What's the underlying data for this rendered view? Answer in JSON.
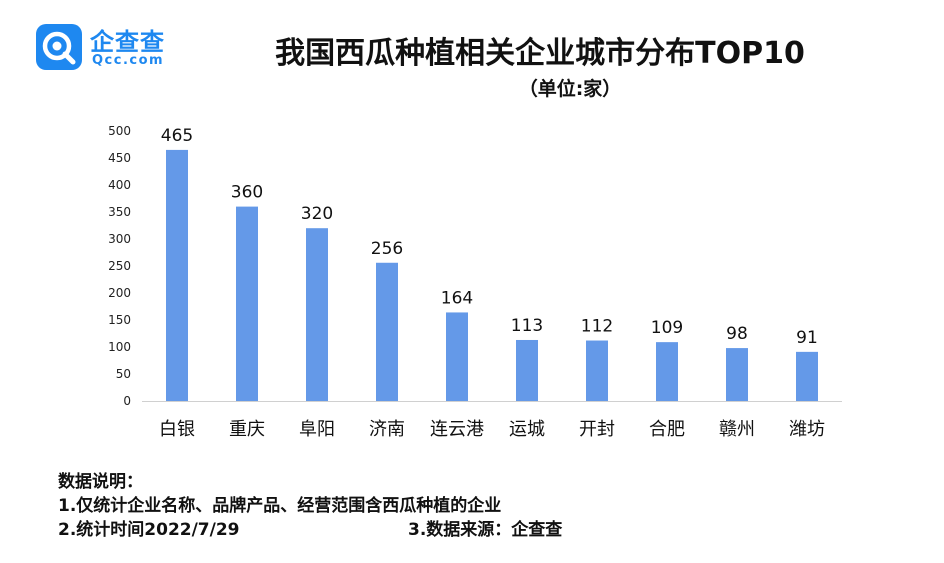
{
  "brand": {
    "name": "企查查",
    "domain": "Qcc.com",
    "color": "#1e88f0"
  },
  "chart_data": {
    "type": "bar",
    "title": "我国西瓜种植相关企业城市分布TOP10",
    "subtitle": "（单位:家）",
    "categories": [
      "白银",
      "重庆",
      "阜阳",
      "济南",
      "连云港",
      "运城",
      "开封",
      "合肥",
      "赣州",
      "潍坊"
    ],
    "values": [
      465,
      360,
      320,
      256,
      164,
      113,
      112,
      109,
      98,
      91
    ],
    "ylim": [
      0,
      500
    ],
    "yticks": [
      0,
      50,
      100,
      150,
      200,
      250,
      300,
      350,
      400,
      450,
      500
    ],
    "bar_color": "#6499e8",
    "grid": false,
    "data_labels": true
  },
  "notes": {
    "heading": "数据说明：",
    "line1": "1.仅统计企业名称、品牌产品、经营范围含西瓜种植的企业",
    "line2": "2.统计时间2022/7/29",
    "line3": "3.数据来源：企查查"
  }
}
